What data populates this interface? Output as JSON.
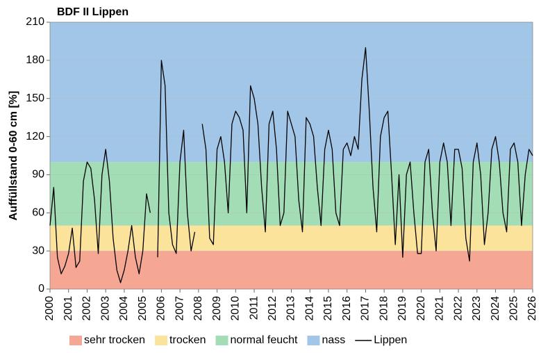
{
  "chart_data": {
    "type": "line",
    "title": "BDF II Lippen",
    "ylabel": "Auffüllstand 0-60 cm [%]",
    "xlim": [
      2000,
      2026
    ],
    "xticks": [
      2000,
      2001,
      2002,
      2003,
      2004,
      2005,
      2006,
      2007,
      2008,
      2009,
      2010,
      2011,
      2012,
      2013,
      2014,
      2015,
      2016,
      2017,
      2018,
      2019,
      2020,
      2021,
      2022,
      2023,
      2024,
      2025,
      2026
    ],
    "ylim": [
      0,
      210
    ],
    "yticks": [
      0,
      30,
      60,
      90,
      120,
      150,
      180,
      210
    ],
    "grid": true,
    "bands": [
      {
        "name": "sehr trocken",
        "color": "#f6a794",
        "from": 0,
        "to": 30
      },
      {
        "name": "trocken",
        "color": "#fbe39c",
        "from": 30,
        "to": 50
      },
      {
        "name": "normal feucht",
        "color": "#a2ddb6",
        "from": 50,
        "to": 100
      },
      {
        "name": "nass",
        "color": "#a2c6e8",
        "from": 100,
        "to": 210
      }
    ],
    "x": [
      2000,
      2000.2,
      2000.4,
      2000.6,
      2000.8,
      2001,
      2001.2,
      2001.4,
      2001.6,
      2001.8,
      2002,
      2002.2,
      2002.4,
      2002.6,
      2002.8,
      2003,
      2003.2,
      2003.4,
      2003.6,
      2003.8,
      2004,
      2004.2,
      2004.4,
      2004.6,
      2004.8,
      2005,
      2005.2,
      2005.4,
      2005.6,
      2005.8,
      2006,
      2006.2,
      2006.4,
      2006.6,
      2006.8,
      2007,
      2007.2,
      2007.4,
      2007.6,
      2007.8,
      2008,
      2008.2,
      2008.4,
      2008.6,
      2008.8,
      2009,
      2009.2,
      2009.4,
      2009.6,
      2009.8,
      2010,
      2010.2,
      2010.4,
      2010.6,
      2010.8,
      2011,
      2011.2,
      2011.4,
      2011.6,
      2011.8,
      2012,
      2012.2,
      2012.4,
      2012.6,
      2012.8,
      2013,
      2013.2,
      2013.4,
      2013.6,
      2013.8,
      2014,
      2014.2,
      2014.4,
      2014.6,
      2014.8,
      2015,
      2015.2,
      2015.4,
      2015.6,
      2015.8,
      2016,
      2016.2,
      2016.4,
      2016.6,
      2016.8,
      2017,
      2017.2,
      2017.4,
      2017.6,
      2017.8,
      2018,
      2018.2,
      2018.4,
      2018.6,
      2018.8,
      2019,
      2019.2,
      2019.4,
      2019.6,
      2019.8,
      2020,
      2020.2,
      2020.4,
      2020.6,
      2020.8,
      2021,
      2021.2,
      2021.4,
      2021.6,
      2021.8,
      2022,
      2022.2,
      2022.4,
      2022.6,
      2022.8,
      2023,
      2023.2,
      2023.4,
      2023.6,
      2023.8,
      2024,
      2024.2,
      2024.4,
      2024.6,
      2024.8,
      2025,
      2025.2,
      2025.4,
      2025.6,
      2025.8,
      2026
    ],
    "series": [
      {
        "name": "Lippen",
        "color": "#000000",
        "values": [
          50,
          80,
          25,
          12,
          18,
          28,
          48,
          17,
          22,
          85,
          100,
          95,
          70,
          28,
          90,
          110,
          85,
          40,
          15,
          5,
          15,
          30,
          50,
          25,
          12,
          30,
          75,
          60,
          null,
          25,
          180,
          160,
          60,
          35,
          28,
          100,
          125,
          60,
          30,
          45,
          null,
          130,
          110,
          40,
          35,
          110,
          120,
          100,
          60,
          130,
          140,
          135,
          125,
          60,
          160,
          150,
          130,
          80,
          45,
          130,
          140,
          110,
          50,
          60,
          140,
          130,
          120,
          70,
          45,
          135,
          130,
          120,
          80,
          50,
          110,
          125,
          110,
          60,
          50,
          110,
          115,
          105,
          120,
          110,
          165,
          190,
          140,
          80,
          45,
          120,
          135,
          140,
          90,
          35,
          90,
          25,
          90,
          100,
          60,
          28,
          28,
          100,
          110,
          60,
          30,
          100,
          115,
          100,
          50,
          110,
          110,
          95,
          40,
          22,
          100,
          115,
          90,
          35,
          60,
          110,
          120,
          100,
          60,
          45,
          110,
          115,
          100,
          50,
          90,
          110,
          105
        ]
      }
    ]
  }
}
